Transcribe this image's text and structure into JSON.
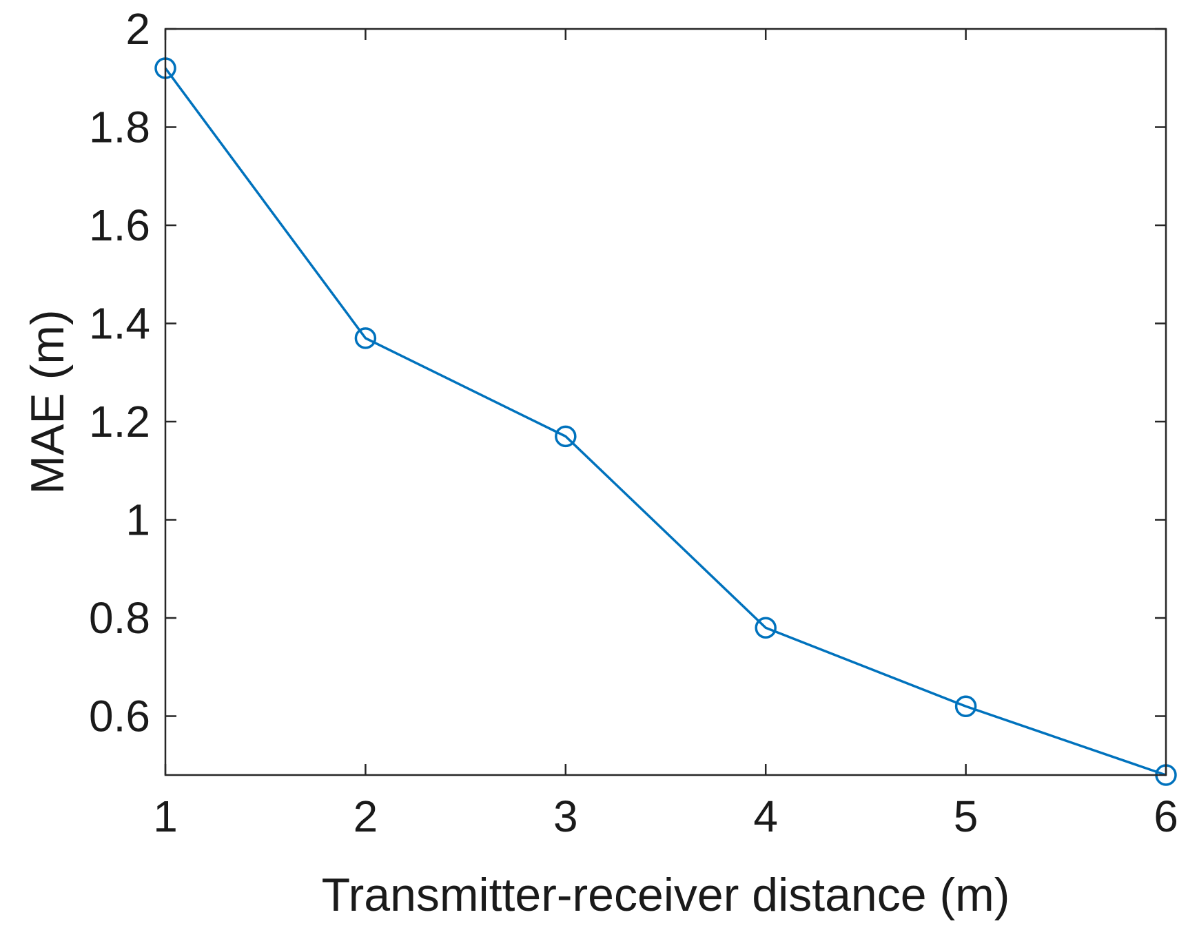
{
  "chart_data": {
    "type": "line",
    "title": "",
    "xlabel": "Transmitter-receiver distance  (m)",
    "ylabel": "MAE  (m)",
    "x": [
      1,
      2,
      3,
      4,
      5,
      6
    ],
    "xlim": [
      1,
      6
    ],
    "ylim": [
      0.48,
      2.0
    ],
    "xticks": [
      1,
      2,
      3,
      4,
      5,
      6
    ],
    "xtick_labels": [
      "1",
      "2",
      "3",
      "4",
      "5",
      "6"
    ],
    "yticks": [
      0.6,
      0.8,
      1.0,
      1.2,
      1.4,
      1.6,
      1.8,
      2.0
    ],
    "ytick_labels": [
      "0.6",
      "0.8",
      "1",
      "1.2",
      "1.4",
      "1.6",
      "1.8",
      "2"
    ],
    "grid": false,
    "series": [
      {
        "values": [
          1.92,
          1.37,
          1.17,
          0.78,
          0.62,
          0.48
        ],
        "color": "#0072BD",
        "marker": "circle"
      }
    ]
  }
}
